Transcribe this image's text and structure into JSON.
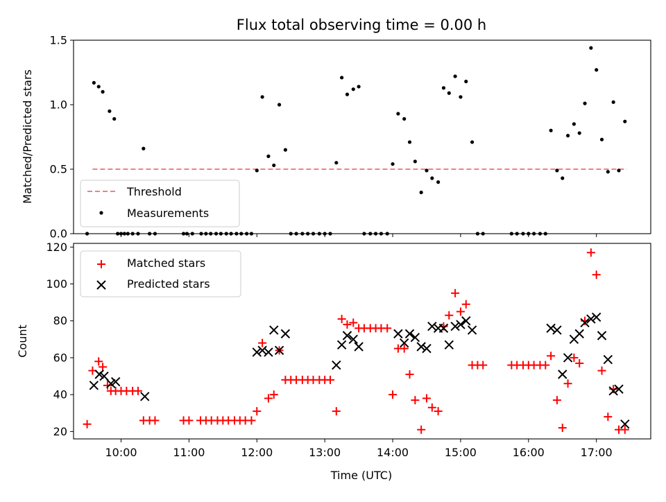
{
  "chart_data": [
    {
      "type": "scatter",
      "title": "Flux total observing time = 0.00 h",
      "ylabel": "Matched/Predicted stars",
      "xlabel": "",
      "xlim": [
        9.3,
        17.8
      ],
      "ylim": [
        0,
        1.5
      ],
      "yticks": [
        0.0,
        0.5,
        1.0,
        1.5
      ],
      "ytick_labels": [
        "0.0",
        "0.5",
        "1.0",
        "1.5"
      ],
      "grid": false,
      "legend_position": "lower-left",
      "series": [
        {
          "name": "Threshold",
          "style": "dashed-line",
          "color": "#f08080",
          "x": [
            9.58,
            17.45
          ],
          "y": [
            0.5,
            0.5
          ]
        },
        {
          "name": "Measurements",
          "style": "dots",
          "color": "#000000",
          "x": [
            9.5,
            9.6,
            9.67,
            9.73,
            9.83,
            9.9,
            9.95,
            10.0,
            10.05,
            10.1,
            10.17,
            10.25,
            10.33,
            10.42,
            10.5,
            10.92,
            10.97,
            11.05,
            11.18,
            11.25,
            11.32,
            11.4,
            11.47,
            11.55,
            11.62,
            11.7,
            11.77,
            11.85,
            11.92,
            12.0,
            12.08,
            12.17,
            12.25,
            12.33,
            12.42,
            12.5,
            12.58,
            12.67,
            12.75,
            12.83,
            12.92,
            13.0,
            13.08,
            13.17,
            13.25,
            13.33,
            13.42,
            13.5,
            13.58,
            13.67,
            13.75,
            13.83,
            13.92,
            14.0,
            14.08,
            14.17,
            14.25,
            14.33,
            14.42,
            14.5,
            14.58,
            14.67,
            14.75,
            14.83,
            14.92,
            15.0,
            15.08,
            15.17,
            15.25,
            15.33,
            15.75,
            15.83,
            15.92,
            16.0,
            16.08,
            16.17,
            16.25,
            16.33,
            16.42,
            16.5,
            16.58,
            16.67,
            16.75,
            16.83,
            16.92,
            17.0,
            17.08,
            17.17,
            17.25,
            17.33,
            17.42
          ],
          "y": [
            0.0,
            1.17,
            1.14,
            1.1,
            0.95,
            0.89,
            0.0,
            0.0,
            0.0,
            0.0,
            0.0,
            0.0,
            0.66,
            0.0,
            0.0,
            0.0,
            0.0,
            0.0,
            0.0,
            0.0,
            0.0,
            0.0,
            0.0,
            0.0,
            0.0,
            0.0,
            0.0,
            0.0,
            0.0,
            0.49,
            1.06,
            0.6,
            0.53,
            1.0,
            0.65,
            0.0,
            0.0,
            0.0,
            0.0,
            0.0,
            0.0,
            0.0,
            0.0,
            0.55,
            1.21,
            1.08,
            1.12,
            1.14,
            0.0,
            0.0,
            0.0,
            0.0,
            0.0,
            0.54,
            0.93,
            0.89,
            0.71,
            0.56,
            0.32,
            0.49,
            0.43,
            0.4,
            1.13,
            1.09,
            1.22,
            1.06,
            1.18,
            0.71,
            0.0,
            0.0,
            0.0,
            0.0,
            0.0,
            0.0,
            0.0,
            0.0,
            0.0,
            0.8,
            0.49,
            0.43,
            0.76,
            0.85,
            0.78,
            1.01,
            1.44,
            1.27,
            0.73,
            0.48,
            1.02,
            0.49,
            0.87
          ]
        }
      ]
    },
    {
      "type": "scatter",
      "title": "",
      "ylabel": "Count",
      "xlabel": "Time (UTC)",
      "xlim": [
        9.3,
        17.8
      ],
      "ylim": [
        16,
        122
      ],
      "yticks": [
        20,
        40,
        60,
        80,
        100,
        120
      ],
      "ytick_labels": [
        "20",
        "40",
        "60",
        "80",
        "100",
        "120"
      ],
      "xticks": [
        10,
        11,
        12,
        13,
        14,
        15,
        16,
        17
      ],
      "xtick_labels": [
        "10:00",
        "11:00",
        "12:00",
        "13:00",
        "14:00",
        "15:00",
        "16:00",
        "17:00"
      ],
      "grid": false,
      "legend_position": "top-left",
      "series": [
        {
          "name": "Matched stars",
          "marker": "plus",
          "color": "#ff0000",
          "x": [
            9.5,
            9.58,
            9.67,
            9.73,
            9.8,
            9.85,
            9.92,
            10.0,
            10.08,
            10.17,
            10.25,
            10.33,
            10.42,
            10.5,
            10.92,
            11.0,
            11.17,
            11.25,
            11.33,
            11.42,
            11.5,
            11.58,
            11.67,
            11.75,
            11.83,
            11.92,
            12.0,
            12.08,
            12.17,
            12.25,
            12.33,
            12.42,
            12.5,
            12.58,
            12.67,
            12.75,
            12.83,
            12.92,
            13.0,
            13.08,
            13.17,
            13.25,
            13.33,
            13.42,
            13.5,
            13.58,
            13.67,
            13.75,
            13.83,
            13.92,
            14.0,
            14.08,
            14.17,
            14.25,
            14.33,
            14.42,
            14.5,
            14.58,
            14.67,
            14.75,
            14.83,
            14.92,
            15.0,
            15.08,
            15.17,
            15.25,
            15.33,
            15.75,
            15.83,
            15.92,
            16.0,
            16.08,
            16.17,
            16.25,
            16.33,
            16.42,
            16.5,
            16.58,
            16.67,
            16.75,
            16.83,
            16.92,
            17.0,
            17.08,
            17.17,
            17.25,
            17.33,
            17.42
          ],
          "y": [
            24,
            53,
            58,
            55,
            45,
            42,
            42,
            42,
            42,
            42,
            42,
            26,
            26,
            26,
            26,
            26,
            26,
            26,
            26,
            26,
            26,
            26,
            26,
            26,
            26,
            26,
            31,
            68,
            38,
            40,
            64,
            48,
            48,
            48,
            48,
            48,
            48,
            48,
            48,
            48,
            31,
            81,
            78,
            79,
            76,
            76,
            76,
            76,
            76,
            76,
            40,
            65,
            65,
            51,
            37,
            21,
            38,
            33,
            31,
            77,
            83,
            95,
            85,
            89,
            56,
            56,
            56,
            56,
            56,
            56,
            56,
            56,
            56,
            56,
            61,
            37,
            22,
            46,
            60,
            57,
            80,
            117,
            105,
            53,
            28,
            43,
            21,
            21
          ]
        },
        {
          "name": "Predicted stars",
          "marker": "x",
          "color": "#000000",
          "x": [
            9.6,
            9.68,
            9.75,
            9.85,
            9.92,
            10.35,
            12.0,
            12.08,
            12.17,
            12.25,
            12.33,
            12.42,
            13.17,
            13.25,
            13.33,
            13.42,
            13.5,
            14.08,
            14.17,
            14.25,
            14.33,
            14.42,
            14.5,
            14.58,
            14.67,
            14.75,
            14.83,
            14.92,
            15.0,
            15.08,
            15.17,
            16.33,
            16.42,
            16.5,
            16.58,
            16.67,
            16.75,
            16.83,
            16.92,
            17.0,
            17.08,
            17.17,
            17.25,
            17.33,
            17.42
          ],
          "y": [
            45,
            51,
            50,
            46,
            47,
            39,
            63,
            64,
            63,
            75,
            64,
            73,
            56,
            67,
            72,
            70,
            66,
            73,
            68,
            73,
            71,
            66,
            65,
            77,
            76,
            76,
            67,
            77,
            78,
            80,
            75,
            76,
            75,
            51,
            60,
            70,
            73,
            79,
            81,
            82,
            72,
            59,
            42,
            43,
            24
          ]
        }
      ]
    }
  ]
}
